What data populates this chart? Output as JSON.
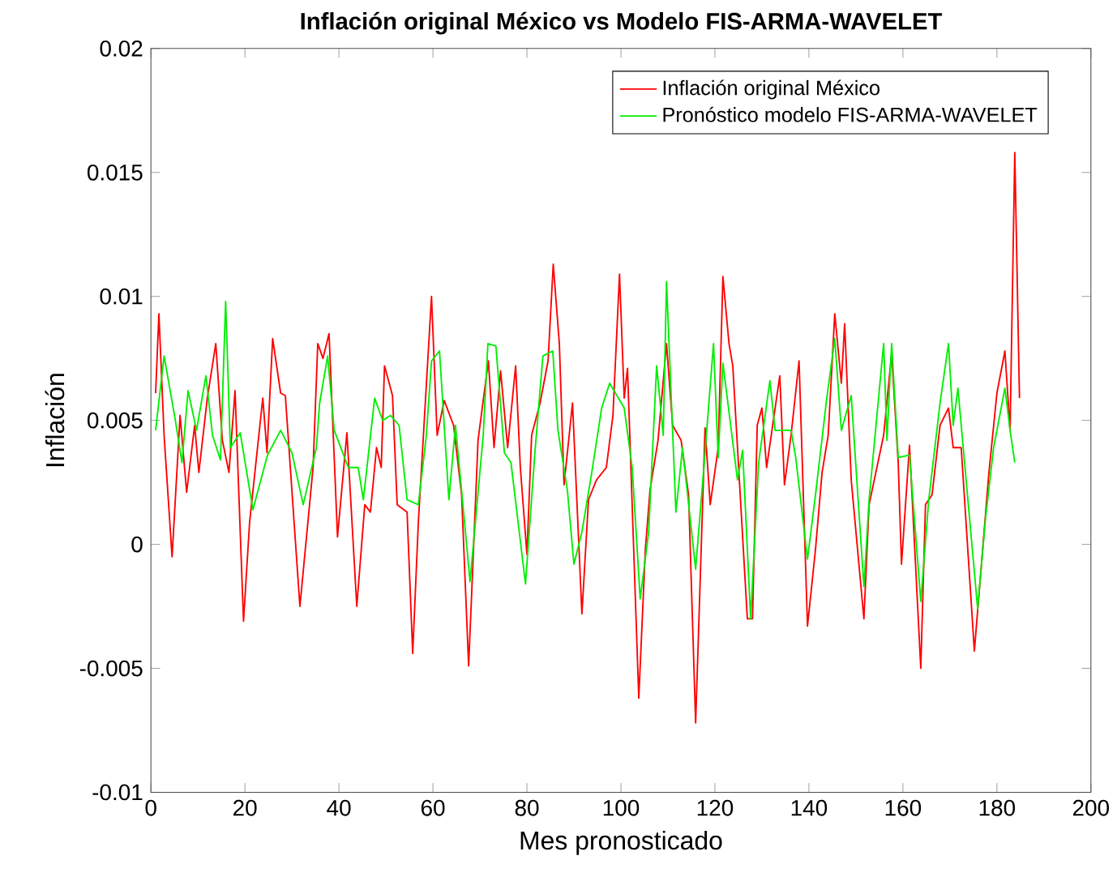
{
  "chart_data": {
    "type": "line",
    "title": "Inflación original México vs Modelo FIS-ARMA-WAVELET",
    "xlabel": "Mes pronosticado",
    "ylabel": "Inflación",
    "xlim": [
      0,
      200
    ],
    "xticks": [
      0,
      20,
      40,
      60,
      80,
      100,
      120,
      140,
      160,
      180,
      200
    ],
    "ylim": [
      -0.01,
      0.02
    ],
    "yticks": [
      -0.01,
      -0.005,
      0,
      0.005,
      0.01,
      0.015,
      0.02
    ],
    "legend": "top right",
    "series": [
      {
        "name": "Inflación original México",
        "color": "#ff0000",
        "x": [
          1,
          1.7,
          2.8,
          4.5,
          6.2,
          7.6,
          9.3,
          10.2,
          12,
          13.8,
          15.2,
          16.6,
          17.9,
          19.7,
          21,
          23.8,
          24.7,
          25.9,
          27.6,
          28.6,
          31.7,
          34.5,
          35.5,
          36.6,
          37.9,
          39.7,
          41.7,
          43.8,
          45.5,
          46.7,
          48,
          49,
          49.7,
          51.4,
          52.4,
          54.5,
          55.7,
          56.9,
          59.7,
          60.9,
          62.4,
          64.4,
          66.1,
          67.6,
          69.6,
          71.8,
          73,
          74.4,
          75.9,
          77.6,
          78.6,
          80,
          81,
          82.8,
          84.5,
          85.6,
          86.9,
          87.9,
          89.7,
          91.7,
          93.1,
          94.8,
          96.9,
          98.3,
          99.7,
          100.7,
          101.4,
          103.8,
          105.2,
          106.2,
          107.9,
          109.7,
          111,
          112.8,
          114.4,
          115.9,
          117.9,
          119,
          120.7,
          121.7,
          123,
          123.8,
          126.9,
          128,
          129,
          130,
          131,
          133.8,
          134.8,
          136.2,
          137.9,
          139.7,
          141.4,
          142.8,
          144.1,
          145.5,
          146.9,
          147.6,
          149,
          151.7,
          152.8,
          155.9,
          157.6,
          159,
          159.7,
          161.4,
          163.8,
          164.8,
          166.2,
          167.9,
          169.7,
          170.7,
          172.4,
          175.2,
          178.3,
          180,
          181.7,
          182.8,
          183.8,
          184.8
        ],
        "values": [
          0.0061,
          0.0093,
          0.0044,
          -0.0005,
          0.0052,
          0.0021,
          0.0048,
          0.0029,
          0.0059,
          0.0081,
          0.0042,
          0.0029,
          0.0062,
          -0.0031,
          0.0009,
          0.0059,
          0.0037,
          0.0083,
          0.0061,
          0.006,
          -0.0025,
          0.0031,
          0.0081,
          0.0075,
          0.0085,
          0.0003,
          0.0045,
          -0.0025,
          0.0016,
          0.0013,
          0.0039,
          0.0031,
          0.0072,
          0.006,
          0.0016,
          0.0013,
          -0.0044,
          0.0009,
          0.01,
          0.0044,
          0.0058,
          0.0048,
          0.002,
          -0.0049,
          0.0042,
          0.0074,
          0.0039,
          0.007,
          0.0039,
          0.0072,
          0.0031,
          -0.0004,
          0.0044,
          0.0057,
          0.0074,
          0.0113,
          0.0081,
          0.0024,
          0.0057,
          -0.0028,
          0.0018,
          0.0026,
          0.0031,
          0.0052,
          0.0109,
          0.0059,
          0.0071,
          -0.0062,
          -0.0002,
          0.0022,
          0.0042,
          0.0081,
          0.0048,
          0.0042,
          0.002,
          -0.0072,
          0.0047,
          0.0016,
          0.0039,
          0.0108,
          0.0081,
          0.0072,
          -0.003,
          -0.003,
          0.0048,
          0.0055,
          0.0031,
          0.0068,
          0.0024,
          0.0044,
          0.0074,
          -0.0033,
          -0.0002,
          0.0029,
          0.0044,
          0.0093,
          0.0065,
          0.0089,
          0.0026,
          -0.003,
          0.0016,
          0.0044,
          0.0077,
          0.0033,
          -0.0008,
          0.004,
          -0.005,
          0.0016,
          0.002,
          0.0048,
          0.0055,
          0.0039,
          0.0039,
          -0.0043,
          0.0029,
          0.0061,
          0.0078,
          0.0046,
          0.0158,
          0.0059
        ]
      },
      {
        "name": "Pronóstico modelo FIS-ARMA-WAVELET",
        "color": "#00ee00",
        "x": [
          1,
          2.8,
          5.2,
          6.6,
          7.9,
          9.7,
          11.7,
          13.1,
          14.8,
          15.9,
          16.9,
          19,
          21.7,
          24.8,
          27.6,
          30,
          32.4,
          35.2,
          35.9,
          37.6,
          39,
          42,
          44.1,
          45.2,
          47.6,
          49.3,
          51,
          52.8,
          54.5,
          56.9,
          58.6,
          59.7,
          61.4,
          63.4,
          64.8,
          67.9,
          70.7,
          71.7,
          73.4,
          75.2,
          76.6,
          79.7,
          81.7,
          83.4,
          85.5,
          86.6,
          88.6,
          90,
          91.7,
          93.8,
          95.9,
          97.6,
          100.7,
          102.4,
          104.1,
          105.9,
          107.6,
          109,
          109.7,
          111.7,
          113.1,
          115.9,
          117.9,
          119.7,
          120.7,
          121.7,
          124.8,
          125.9,
          127.6,
          129.3,
          131.7,
          132.8,
          136.2,
          137.2,
          139.7,
          141.4,
          143.8,
          145.5,
          146.9,
          149,
          151.7,
          152.8,
          155.9,
          156.6,
          157.6,
          159,
          161.4,
          163.8,
          165.5,
          167.9,
          169.7,
          170.7,
          171.7,
          175.9,
          177.6,
          179.3,
          181.7,
          182.8,
          183.8
        ],
        "values": [
          0.0046,
          0.0076,
          0.005,
          0.0033,
          0.0062,
          0.0046,
          0.0068,
          0.0044,
          0.0034,
          0.0098,
          0.0039,
          0.0045,
          0.0014,
          0.0036,
          0.0046,
          0.0037,
          0.0016,
          0.0039,
          0.0057,
          0.0076,
          0.0046,
          0.0031,
          0.0031,
          0.0018,
          0.0059,
          0.005,
          0.0052,
          0.0048,
          0.0018,
          0.0016,
          0.0044,
          0.0074,
          0.0078,
          0.0018,
          0.0048,
          -0.0015,
          0.0044,
          0.0081,
          0.008,
          0.0037,
          0.0033,
          -0.0016,
          0.0037,
          0.0076,
          0.0078,
          0.0046,
          0.0022,
          -0.0008,
          0.0005,
          0.0029,
          0.0055,
          0.0065,
          0.0055,
          0.0031,
          -0.0022,
          0.0005,
          0.0072,
          0.0044,
          0.0106,
          0.0013,
          0.0039,
          -0.001,
          0.0037,
          0.0081,
          0.0035,
          0.0073,
          0.0026,
          0.0038,
          -0.003,
          0.0033,
          0.0066,
          0.0046,
          0.0046,
          0.0035,
          -0.0006,
          0.002,
          0.0059,
          0.0083,
          0.0046,
          0.006,
          -0.0017,
          0.0018,
          0.0081,
          0.0042,
          0.0081,
          0.0035,
          0.0036,
          -0.0023,
          0.0018,
          0.0057,
          0.0081,
          0.0048,
          0.0063,
          -0.0026,
          0.0011,
          0.0039,
          0.0063,
          0.0046,
          0.0033
        ]
      }
    ]
  }
}
